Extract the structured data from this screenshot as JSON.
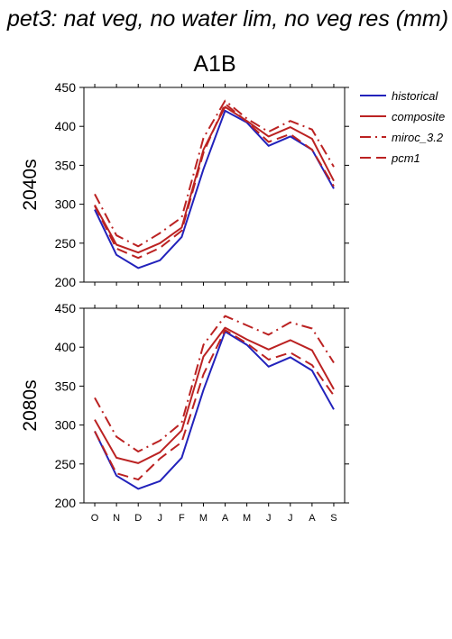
{
  "figure": {
    "title": "pet3: nat veg, no water lim, no veg res (mm)",
    "scenario": "A1B"
  },
  "legend": {
    "placement": "right",
    "entries": [
      {
        "label": "historical",
        "color": "#2222bb",
        "dash": "solid"
      },
      {
        "label": "composite",
        "color": "#bb2222",
        "dash": "solid"
      },
      {
        "label": "miroc_3.2",
        "color": "#bb2222",
        "dash": "dashdot"
      },
      {
        "label": "pcm1",
        "color": "#bb2222",
        "dash": "dash"
      }
    ]
  },
  "chart_data": [
    {
      "type": "line",
      "panel": "2040s",
      "ylabel": "2040s",
      "ylim": [
        200,
        450
      ],
      "yticks": [
        200,
        250,
        300,
        350,
        400,
        450
      ],
      "x": [
        "O",
        "N",
        "D",
        "J",
        "F",
        "M",
        "A",
        "M",
        "J",
        "J",
        "A",
        "S"
      ],
      "grid": false,
      "series": [
        {
          "name": "historical",
          "values": [
            293,
            235,
            218,
            228,
            258,
            345,
            420,
            405,
            375,
            387,
            370,
            320
          ]
        },
        {
          "name": "composite",
          "values": [
            299,
            248,
            238,
            250,
            270,
            370,
            425,
            407,
            387,
            399,
            384,
            330
          ]
        },
        {
          "name": "miroc_3.2",
          "values": [
            313,
            260,
            246,
            263,
            283,
            385,
            433,
            410,
            393,
            407,
            396,
            348
          ]
        },
        {
          "name": "pcm1",
          "values": [
            298,
            243,
            231,
            244,
            266,
            366,
            429,
            406,
            380,
            390,
            370,
            323
          ]
        }
      ]
    },
    {
      "type": "line",
      "panel": "2080s",
      "ylabel": "2080s",
      "ylim": [
        200,
        450
      ],
      "yticks": [
        200,
        250,
        300,
        350,
        400,
        450
      ],
      "x": [
        "O",
        "N",
        "D",
        "J",
        "F",
        "M",
        "A",
        "M",
        "J",
        "J",
        "A",
        "S"
      ],
      "grid": false,
      "series": [
        {
          "name": "historical",
          "values": [
            292,
            235,
            218,
            228,
            258,
            345,
            420,
            403,
            375,
            387,
            370,
            320
          ]
        },
        {
          "name": "composite",
          "values": [
            307,
            258,
            251,
            265,
            293,
            388,
            425,
            410,
            397,
            409,
            396,
            346
          ]
        },
        {
          "name": "miroc_3.2",
          "values": [
            335,
            285,
            266,
            280,
            303,
            403,
            440,
            428,
            416,
            432,
            424,
            380
          ]
        },
        {
          "name": "pcm1",
          "values": [
            292,
            238,
            230,
            257,
            278,
            365,
            422,
            405,
            384,
            393,
            377,
            338
          ]
        }
      ]
    }
  ]
}
